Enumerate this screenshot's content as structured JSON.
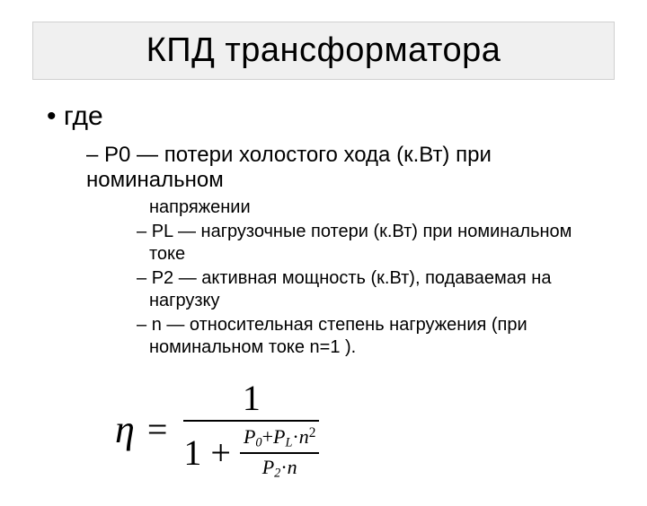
{
  "title": "КПД трансформатора",
  "where_label": "где",
  "p0_line": "P0  — потери холостого хода (к.Вт) при номинальном",
  "p0_cont": "напряжении",
  "pl_line": "PL  — нагрузочные потери (к.Вт) при номинальном токе",
  "p2_line": "P2  — активная мощность (к.Вт), подаваемая на нагрузку",
  "n_line": "n  — относительная степень нагружения (при номинальном токе n=1  ).",
  "formula": {
    "lhs": "η",
    "eq": "=",
    "numerator": "1",
    "one_plus": "1 +",
    "inner_num_plain": "P0 + PL · n²",
    "inner_den_plain": "P2 · n"
  },
  "colors": {
    "bg": "#ffffff",
    "title_box_bg": "#f0f0f0",
    "title_box_border": "#d0d0d0",
    "text": "#000000"
  }
}
